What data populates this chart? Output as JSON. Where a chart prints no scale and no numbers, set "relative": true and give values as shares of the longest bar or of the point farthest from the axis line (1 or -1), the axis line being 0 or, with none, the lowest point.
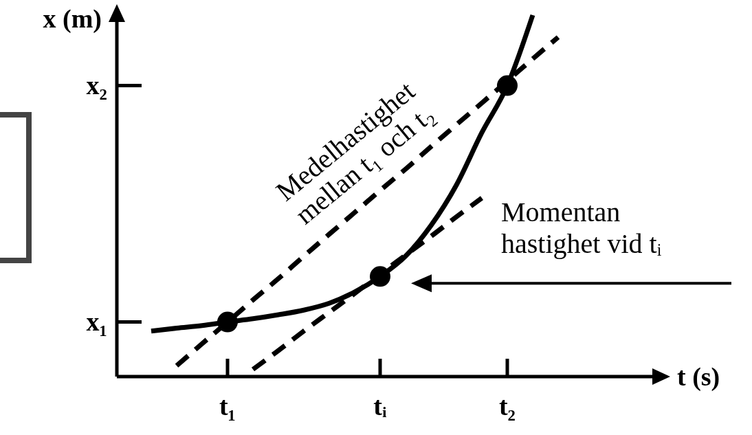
{
  "chart_data": {
    "type": "line",
    "relative": true,
    "xlabel": "t (s)",
    "ylabel": "x (m)",
    "categories": [
      null,
      null,
      null,
      null,
      "t₁",
      null,
      null,
      null,
      null,
      null,
      "tᵢ",
      null,
      null,
      null,
      null,
      "t₂",
      null,
      null
    ],
    "grid": false,
    "legend": false,
    "series": [
      {
        "type": "line",
        "color": "#000000",
        "line_style": "solid",
        "marker": "none",
        "values": [
          null,
          0.126,
          0.134,
          0.141,
          0.151,
          0.16,
          0.171,
          0.184,
          0.203,
          0.234,
          0.277,
          0.333,
          0.418,
          0.53,
          0.675,
          0.805,
          1,
          null
        ]
      },
      {
        "type": "line",
        "color": "#000000",
        "line_style": "dashed",
        "marker": "none",
        "values": [
          null,
          null,
          0.03,
          0.091,
          0.151,
          0.212,
          0.271,
          0.333,
          0.394,
          0.454,
          0.515,
          0.574,
          0.636,
          0.697,
          0.757,
          0.818,
          0.879,
          0.939
        ]
      },
      {
        "type": "line",
        "color": "#000000",
        "line_style": "dashed",
        "marker": "none",
        "values": [
          null,
          null,
          null,
          null,
          null,
          0.02,
          0.072,
          0.126,
          0.178,
          0.23,
          0.284,
          0.336,
          0.388,
          0.442,
          0.494,
          null,
          null,
          null
        ]
      },
      {
        "type": "scatter",
        "color": "#000000",
        "marker": "circle",
        "values": [
          null,
          null,
          null,
          null,
          0.151,
          null,
          null,
          null,
          null,
          null,
          0.277,
          null,
          null,
          null,
          null,
          0.805,
          null,
          null
        ]
      }
    ],
    "annotations": [
      "Medelhastighet\nmellan t₁ och t₂",
      "Momentan\nhastighet vid tᵢ",
      "x₁",
      "x₂"
    ]
  }
}
